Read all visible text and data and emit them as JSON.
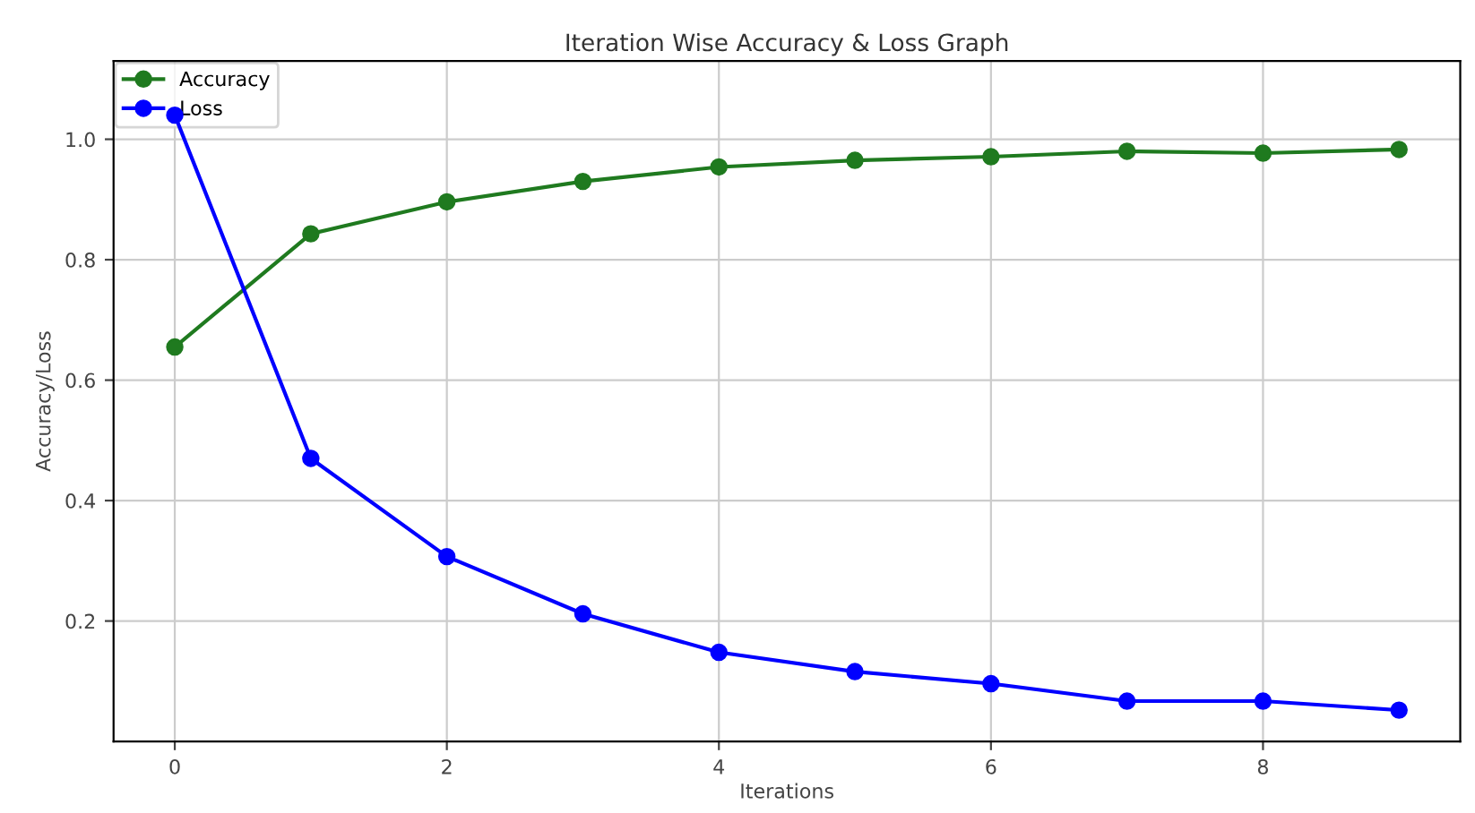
{
  "chart_data": {
    "type": "line",
    "title": "Iteration Wise Accuracy & Loss Graph",
    "xlabel": "Iterations",
    "ylabel": "Accuracy/Loss",
    "x": [
      0,
      1,
      2,
      3,
      4,
      5,
      6,
      7,
      8,
      9
    ],
    "series": [
      {
        "name": "Accuracy",
        "color": "#1f7a1f",
        "values": [
          0.655,
          0.843,
          0.896,
          0.93,
          0.954,
          0.965,
          0.971,
          0.98,
          0.977,
          0.983
        ]
      },
      {
        "name": "Loss",
        "color": "#0000ff",
        "values": [
          1.04,
          0.47,
          0.307,
          0.212,
          0.148,
          0.116,
          0.096,
          0.067,
          0.067,
          0.052
        ]
      }
    ],
    "xlim": [
      -0.45,
      9.45
    ],
    "ylim": [
      0,
      1.13
    ],
    "xticks": [
      0,
      2,
      4,
      6,
      8
    ],
    "yticks": [
      0.2,
      0.4,
      0.6,
      0.8,
      {
        "value": 1.0,
        "label": "1.0"
      }
    ],
    "grid": true,
    "legend": "top left",
    "marker": "circle",
    "line_style": "solid"
  }
}
